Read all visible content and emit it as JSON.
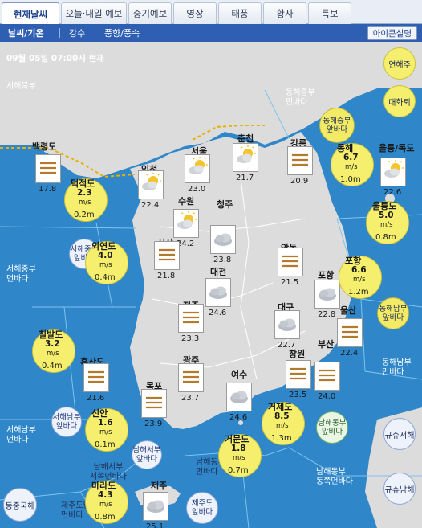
{
  "tabs": [
    {
      "label": "현재날씨",
      "active": true
    },
    {
      "label": "오늘·내일 예보"
    },
    {
      "label": "중기예보"
    },
    {
      "label": "영상"
    },
    {
      "label": "태풍"
    },
    {
      "label": "황사"
    },
    {
      "label": "특보"
    }
  ],
  "subtabs": [
    {
      "label": "날씨/기온",
      "active": true
    },
    {
      "label": "강수"
    },
    {
      "label": "풍향/풍속"
    }
  ],
  "icon_legend_label": "아이콘설명",
  "timestamp": "09월 05일 07:00시 현재",
  "right_buttons": {
    "yeonhaeju": "연해주",
    "daehwatoe": "대화퇴"
  },
  "bottom_right_buttons": {
    "gyusu_seohae": "규슈서해",
    "gyusu_namhae": "규슈남해"
  },
  "east_china_sea": "동중국해",
  "sea_labels": {
    "seohae_bukbu": "서해북부",
    "seohae_jungbu": "서해중부\n먼바다",
    "seohae_nambu": "서해남부\n먼바다",
    "donghae_jungbu": "동해중부\n먼바다",
    "donghae_nambu": "동해남부\n먼바다",
    "namhae_seobu": "남해서부\n서쪽먼바다",
    "namhae_dongbu": "남해동부\n먼바다",
    "namhae_dongbu_east": "남해동부\n동쪽먼바다",
    "jeju_namhae": "제주도남해\n먼바다"
  },
  "warn_zones": {
    "seohae_jungbu": "서해중부\n앞바다",
    "seohae_nambu": "서해남부\n앞바다",
    "donghae_jungbu": "동해중부\n앞바다",
    "donghae_nambu": "동해남부\n앞바다",
    "namhae_seobu": "남해서부\n앞바다",
    "namhae_dongbu": "남해동부\n앞바다",
    "jeju": "제주도\n앞바다"
  },
  "land_stations": [
    {
      "id": "baengnyeong",
      "name": "백령도",
      "icon": "haze-icon",
      "temp": "17.8"
    },
    {
      "id": "incheon",
      "name": "인천",
      "icon": "partly-cloudy-icon",
      "temp": "22.4"
    },
    {
      "id": "seoul",
      "name": "서울",
      "icon": "partly-cloudy-icon",
      "temp": "23.0"
    },
    {
      "id": "chuncheon",
      "name": "춘천",
      "icon": "partly-cloudy-icon",
      "temp": "21.7"
    },
    {
      "id": "gangneung",
      "name": "강릉",
      "icon": "haze-icon",
      "temp": "20.9"
    },
    {
      "id": "suwon",
      "name": "수원",
      "icon": "partly-cloudy-icon",
      "temp": "24.2"
    },
    {
      "id": "cheongju",
      "name": "청주",
      "icon": "cloudy-icon",
      "temp": "23.8"
    },
    {
      "id": "seosan",
      "name": "서산",
      "icon": "haze-icon",
      "temp": "21.8"
    },
    {
      "id": "andong",
      "name": "안동",
      "icon": "haze-icon",
      "temp": "21.5"
    },
    {
      "id": "daejeon",
      "name": "대전",
      "icon": "cloudy-icon",
      "temp": "24.6"
    },
    {
      "id": "pohang",
      "name": "포항",
      "icon": "cloudy-icon",
      "temp": "22.8"
    },
    {
      "id": "jeonju",
      "name": "전주",
      "icon": "haze-icon",
      "temp": "23.3"
    },
    {
      "id": "daegu",
      "name": "대구",
      "icon": "cloudy-icon",
      "temp": "22.7"
    },
    {
      "id": "ulsan",
      "name": "울산",
      "icon": "haze-icon",
      "temp": "22.4"
    },
    {
      "id": "heuksando",
      "name": "흑산도",
      "icon": "haze-icon",
      "temp": "21.6"
    },
    {
      "id": "gwangju",
      "name": "광주",
      "icon": "haze-icon",
      "temp": "23.7"
    },
    {
      "id": "changwon",
      "name": "창원",
      "icon": "haze-icon",
      "temp": "23.5"
    },
    {
      "id": "busan",
      "name": "부산",
      "icon": "haze-icon",
      "temp": "24.0"
    },
    {
      "id": "mokpo",
      "name": "목포",
      "icon": "haze-icon",
      "temp": "23.9"
    },
    {
      "id": "yeosu",
      "name": "여수",
      "icon": "cloudy-icon",
      "temp": "24.6"
    },
    {
      "id": "jeju",
      "name": "제주",
      "icon": "cloudy-icon",
      "temp": "25.1"
    },
    {
      "id": "ulleung",
      "name": "울릉/독도",
      "icon": "partly-cloudy-icon",
      "temp": "22.6"
    }
  ],
  "sea_stations": [
    {
      "id": "deokjeokdo",
      "name": "덕적도",
      "wind": "2.3",
      "unit": "m/s",
      "wave": "0.2m"
    },
    {
      "id": "oeyeondo",
      "name": "외연도",
      "wind": "4.0",
      "unit": "m/s",
      "wave": "0.4m"
    },
    {
      "id": "chilbaldo",
      "name": "칠발도",
      "wind": "3.2",
      "unit": "m/s",
      "wave": "0.4m"
    },
    {
      "id": "sinan",
      "name": "신안",
      "wind": "1.6",
      "unit": "m/s",
      "wave": "0.1m"
    },
    {
      "id": "marado",
      "name": "마라도",
      "wind": "4.3",
      "unit": "m/s",
      "wave": "0.8m"
    },
    {
      "id": "geomundo",
      "name": "거문도",
      "wind": "1.8",
      "unit": "m/s",
      "wave": "0.7m"
    },
    {
      "id": "geojedo",
      "name": "거제도",
      "wind": "8.5",
      "unit": "m/s",
      "wave": "1.3m"
    },
    {
      "id": "pohang_sea",
      "name": "포항",
      "wind": "6.6",
      "unit": "m/s",
      "wave": "1.2m"
    },
    {
      "id": "ulleungdo",
      "name": "울릉도",
      "wind": "5.0",
      "unit": "m/s",
      "wave": "0.8m"
    },
    {
      "id": "donghae",
      "name": "동해",
      "wind": "6.7",
      "unit": "m/s",
      "wave": "1.0m"
    }
  ]
}
